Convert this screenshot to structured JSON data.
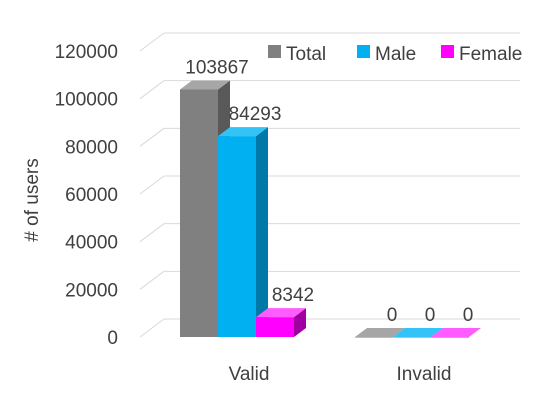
{
  "chart_data": {
    "type": "bar",
    "style": "3d-clustered-column",
    "categories": [
      "Valid",
      "Invalid"
    ],
    "series": [
      {
        "name": "Total",
        "values": [
          103867,
          0
        ],
        "color": "#808080",
        "side_color": "#595959",
        "top_color": "#a6a6a6"
      },
      {
        "name": "Male",
        "values": [
          84293,
          0
        ],
        "color": "#00b0f0",
        "side_color": "#0078a8",
        "top_color": "#33c3f7"
      },
      {
        "name": "Female",
        "values": [
          8342,
          0
        ],
        "color": "#ff00ff",
        "side_color": "#a000a0",
        "top_color": "#ff5cff"
      }
    ],
    "data_labels": [
      [
        "103867",
        "84293",
        "8342"
      ],
      [
        "0",
        "0",
        "0"
      ]
    ],
    "ylabel": "# of users",
    "ylim": [
      0,
      120000
    ],
    "yticks": [
      "0",
      "20000",
      "40000",
      "60000",
      "80000",
      "100000",
      "120000"
    ],
    "grid": true,
    "legend_position": "top-right"
  }
}
